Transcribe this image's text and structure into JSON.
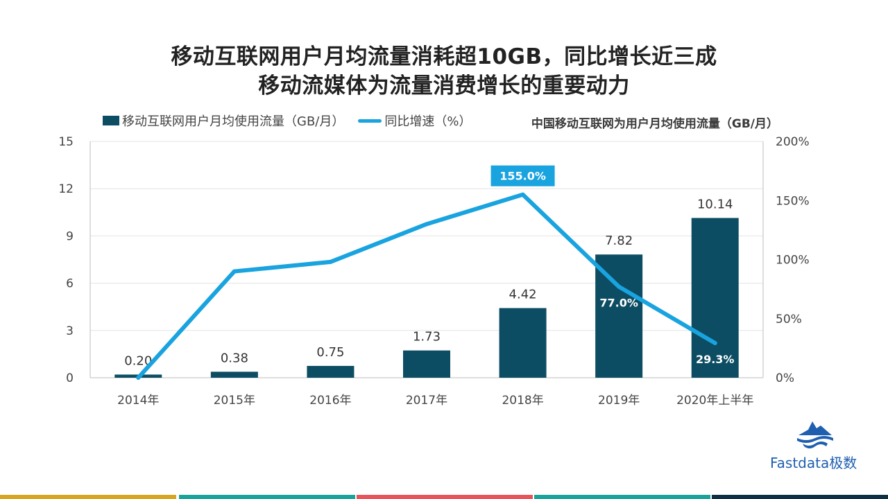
{
  "title_line1": "移动互联网用户月均流量消耗超10GB，同比增长近三成",
  "title_line2": "移动流媒体为流量消费增长的重要动力",
  "legend": {
    "bar_label": "移动互联网用户月均使用流量（GB/月）",
    "line_label": "同比增速（%）"
  },
  "chart_subtitle": "中国移动互联网为用户月均使用流量（GB/月）",
  "brand": "Fastdata极数",
  "colors": {
    "bar": "#0d4d63",
    "line": "#19a3df",
    "badge_bg": "#19a3df",
    "axis_text": "#444444",
    "footer": [
      "#d9a521",
      "#1aa39a",
      "#e8545a",
      "#1aa39a",
      "#0f2f45"
    ]
  },
  "chart_data": {
    "type": "bar",
    "categories": [
      "2014年",
      "2015年",
      "2016年",
      "2017年",
      "2018年",
      "2019年",
      "2020年上半年"
    ],
    "series": [
      {
        "name": "移动互联网用户月均使用流量（GB/月）",
        "type": "bar",
        "axis": "left",
        "values": [
          0.2,
          0.38,
          0.75,
          1.73,
          4.42,
          7.82,
          10.14
        ],
        "labels": [
          "0.20",
          "0.38",
          "0.75",
          "1.73",
          "4.42",
          "7.82",
          "10.14"
        ]
      },
      {
        "name": "同比增速（%）",
        "type": "line",
        "axis": "right",
        "values": [
          0,
          90,
          98,
          130,
          155,
          77,
          29.3
        ],
        "labels": [
          "",
          "",
          "",
          "",
          "155.0%",
          "77.0%",
          "29.3%"
        ]
      }
    ],
    "ylim_left": [
      0,
      15
    ],
    "yticks_left": [
      "0",
      "3",
      "6",
      "9",
      "12",
      "15"
    ],
    "ylim_right": [
      0,
      200
    ],
    "yticks_right": [
      "0%",
      "50%",
      "100%",
      "150%",
      "200%"
    ],
    "grid": true,
    "legend_position": "top-left"
  }
}
